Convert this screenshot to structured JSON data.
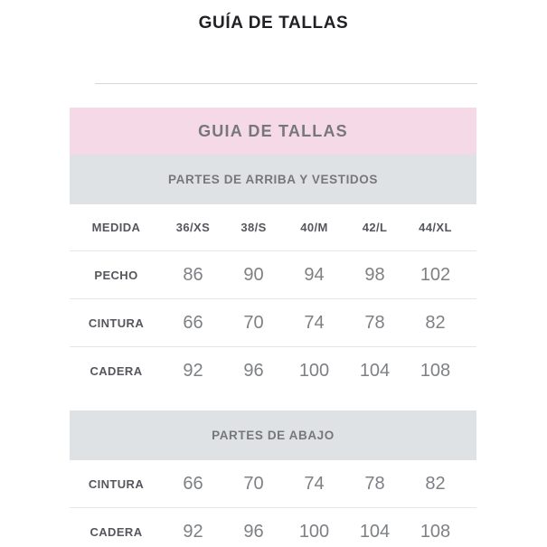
{
  "page": {
    "title": "GUÍA DE TALLAS"
  },
  "guide": {
    "title": "GUIA DE TALLAS",
    "sections": [
      {
        "header": "PARTES DE ARRIBA Y VESTIDOS",
        "columns": [
          "MEDIDA",
          "36/XS",
          "38/S",
          "40/M",
          "42/L",
          "44/XL"
        ],
        "rows": [
          {
            "label": "PECHO",
            "values": [
              "86",
              "90",
              "94",
              "98",
              "102"
            ]
          },
          {
            "label": "CINTURA",
            "values": [
              "66",
              "70",
              "74",
              "78",
              "82"
            ]
          },
          {
            "label": "CADERA",
            "values": [
              "92",
              "96",
              "100",
              "104",
              "108"
            ]
          }
        ]
      },
      {
        "header": "PARTES DE ABAJO",
        "rows": [
          {
            "label": "CINTURA",
            "values": [
              "66",
              "70",
              "74",
              "78",
              "82"
            ]
          },
          {
            "label": "CADERA",
            "values": [
              "92",
              "96",
              "100",
              "104",
              "108"
            ]
          }
        ]
      }
    ]
  },
  "colors": {
    "pink_header_bg": "#f6d9e7",
    "section_header_bg": "#dfe2e5",
    "title_text": "#202124",
    "header_text": "#76777b",
    "label_text": "#55575c",
    "value_text": "#7e8084",
    "divider": "#d6d6d6",
    "row_border": "#e6e6e8"
  }
}
